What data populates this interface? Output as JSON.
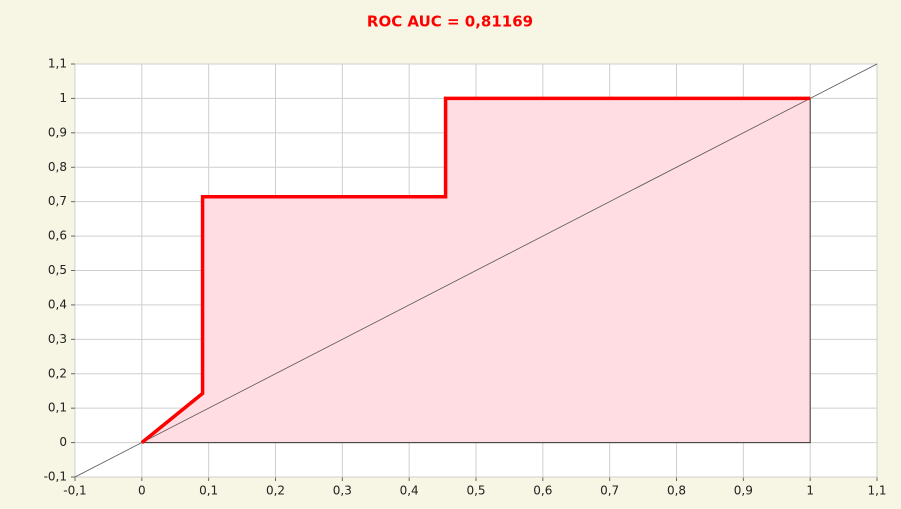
{
  "chart_data": {
    "type": "line",
    "title": "ROC AUC = 0,81169",
    "series": [
      {
        "color": "#ff0000",
        "fill": "#ffdde2",
        "x": [
          0,
          0.0909,
          0.0909,
          0.4545,
          0.4545,
          1
        ],
        "values": [
          0,
          0.1429,
          0.7143,
          0.7143,
          1,
          1
        ]
      }
    ],
    "reference_line": {
      "color": "#555555",
      "x": [
        -0.1,
        1.1
      ],
      "values": [
        -0.1,
        1.1
      ]
    },
    "xlim": [
      -0.1,
      1.1
    ],
    "xticks": [
      {
        "value": -0.1,
        "label": "-0,1"
      },
      0,
      {
        "value": 0.1,
        "label": "0,1"
      },
      {
        "value": 0.2,
        "label": "0,2"
      },
      {
        "value": 0.3,
        "label": "0,3"
      },
      {
        "value": 0.4,
        "label": "0,4"
      },
      {
        "value": 0.5,
        "label": "0,5"
      },
      {
        "value": 0.6,
        "label": "0,6"
      },
      {
        "value": 0.7,
        "label": "0,7"
      },
      {
        "value": 0.8,
        "label": "0,8"
      },
      {
        "value": 0.9,
        "label": "0,9"
      },
      1,
      {
        "value": 1.1,
        "label": "1,1"
      }
    ],
    "ylim": [
      -0.1,
      1.1
    ],
    "yticks": [
      {
        "value": -0.1,
        "label": "-0,1"
      },
      0,
      {
        "value": 0.1,
        "label": "0,1"
      },
      {
        "value": 0.2,
        "label": "0,2"
      },
      {
        "value": 0.3,
        "label": "0,3"
      },
      {
        "value": 0.4,
        "label": "0,4"
      },
      {
        "value": 0.5,
        "label": "0,5"
      },
      {
        "value": 0.6,
        "label": "0,6"
      },
      {
        "value": 0.7,
        "label": "0,7"
      },
      {
        "value": 0.8,
        "label": "0,8"
      },
      {
        "value": 0.9,
        "label": "0,9"
      },
      1,
      {
        "value": 1.1,
        "label": "1,1"
      }
    ],
    "grid": true
  }
}
